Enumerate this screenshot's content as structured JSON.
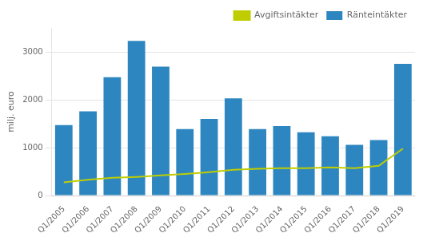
{
  "chart_data": {
    "type": "bar",
    "ylabel": "milj. euro",
    "categories": [
      "Q1/2005",
      "Q1/2006",
      "Q1/2007",
      "Q1/2008",
      "Q1/2009",
      "Q1/2010",
      "Q1/2011",
      "Q1/2012",
      "Q1/2013",
      "Q1/2014",
      "Q1/2015",
      "Q1/2016",
      "Q1/2017",
      "Q1/2018",
      "Q1/2019"
    ],
    "series": [
      {
        "name": "Ränteintäkter",
        "type": "bar",
        "color": "#2E86C1",
        "values": [
          1470,
          1760,
          2470,
          3230,
          2690,
          1390,
          1600,
          2030,
          1390,
          1450,
          1320,
          1240,
          1060,
          1160,
          2750
        ]
      },
      {
        "name": "Avgiftsintäkter",
        "type": "line",
        "color": "#BFCD00",
        "values": [
          275,
          330,
          370,
          390,
          420,
          450,
          490,
          540,
          560,
          570,
          570,
          590,
          570,
          620,
          980
        ]
      }
    ],
    "ylim": [
      0,
      3500
    ],
    "yticks": [
      0,
      1000,
      2000,
      3000
    ],
    "grid": true,
    "legend": "upper right"
  }
}
